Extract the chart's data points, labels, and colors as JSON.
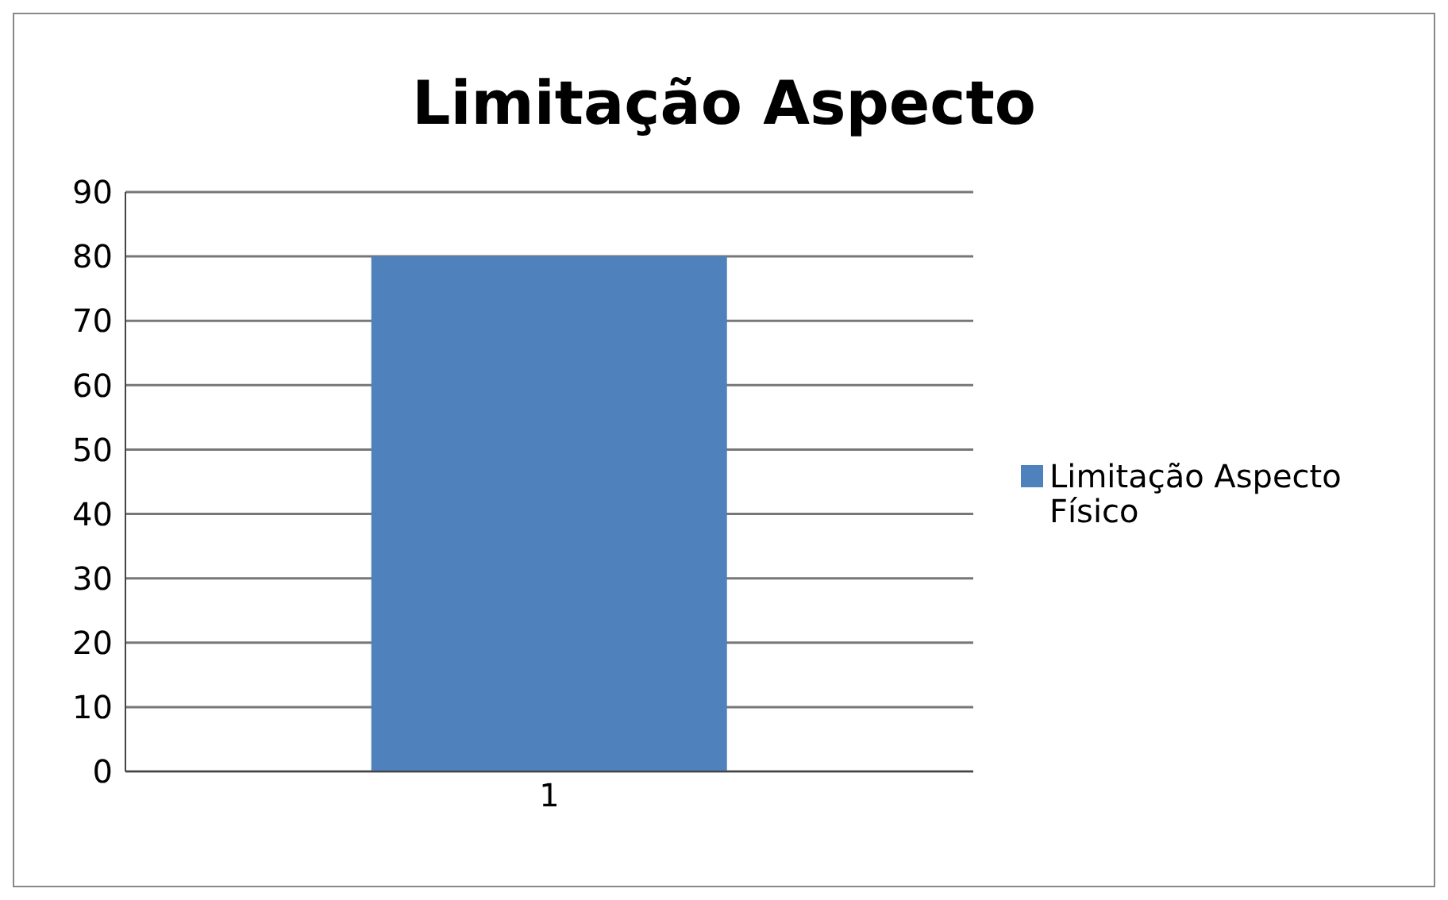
{
  "chart_data": {
    "type": "bar",
    "title": "Limitação Aspecto",
    "categories": [
      "1"
    ],
    "series": [
      {
        "name": "Limitação Aspecto Físico",
        "color": "#4f81bd",
        "values": [
          80
        ]
      }
    ],
    "ylim": [
      0,
      90
    ],
    "yticks": [
      0,
      10,
      20,
      30,
      40,
      50,
      60,
      70,
      80,
      90
    ],
    "grid": "y",
    "legend": "right"
  }
}
